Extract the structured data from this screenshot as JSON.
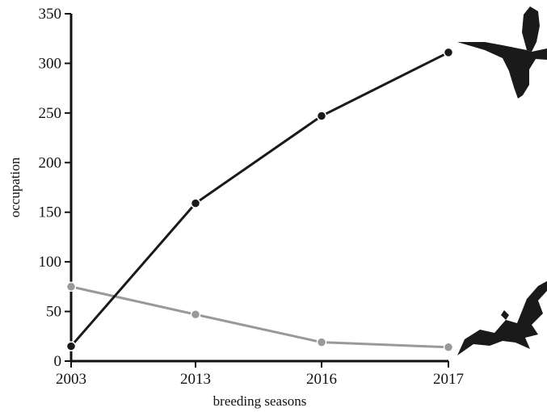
{
  "chart_data": {
    "type": "line",
    "x": [
      "2003",
      "2013",
      "2016",
      "2017"
    ],
    "series": [
      {
        "values": [
          15,
          159,
          247,
          311
        ],
        "color": "#1a1a1a"
      },
      {
        "values": [
          75,
          47,
          19,
          14
        ],
        "color": "#999999"
      }
    ],
    "xlabel": "breeding seasons",
    "ylabel": "occupation",
    "ylim": [
      0,
      350
    ],
    "yticks": [
      "0",
      "50",
      "100",
      "150",
      "200",
      "250",
      "300",
      "350"
    ],
    "grid": false,
    "icons": [
      "swift-silhouette-icon",
      "bat-silhouette-icon"
    ]
  }
}
